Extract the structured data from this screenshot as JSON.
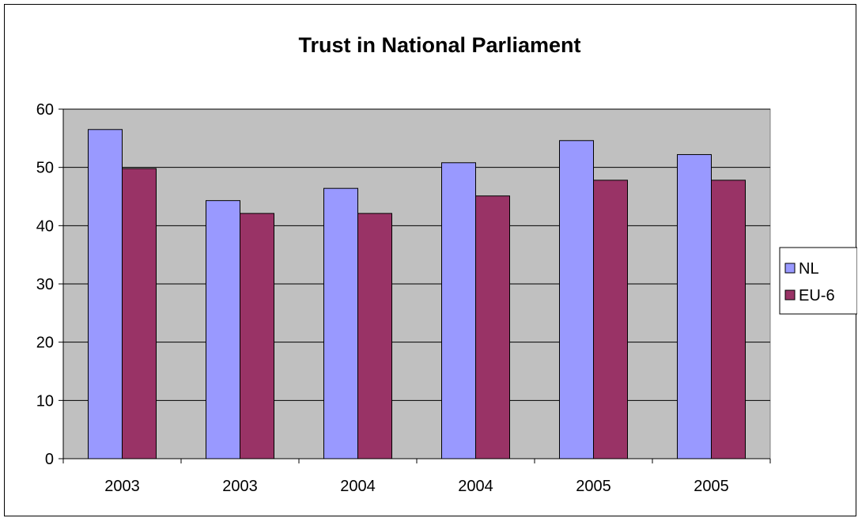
{
  "chart_data": {
    "type": "bar",
    "title": "Trust in National Parliament",
    "xlabel": "",
    "ylabel": "",
    "categories": [
      "2003",
      "2003",
      "2004",
      "2004",
      "2005",
      "2005"
    ],
    "series": [
      {
        "name": "NL",
        "values": [
          56.5,
          44.3,
          46.4,
          50.8,
          54.6,
          52.2
        ],
        "color": "#9999ff"
      },
      {
        "name": "EU-6",
        "values": [
          49.8,
          42.1,
          42.1,
          45.1,
          47.8,
          47.8
        ],
        "color": "#993366"
      }
    ],
    "ylim": [
      0,
      60
    ],
    "yticks": [
      "0",
      "10",
      "20",
      "30",
      "40",
      "50",
      "60"
    ],
    "grid": true,
    "legend_position": "right",
    "plot_background": "#c0c0c0"
  }
}
